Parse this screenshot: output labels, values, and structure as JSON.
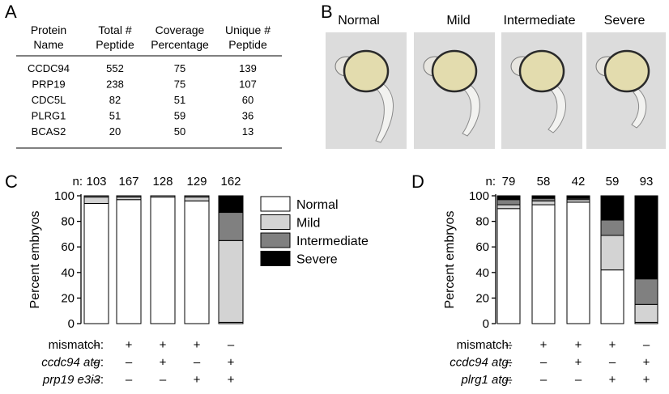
{
  "panels": {
    "A": "A",
    "B": "B",
    "C": "C",
    "D": "D"
  },
  "table": {
    "headers": [
      [
        "Protein",
        "Name"
      ],
      [
        "Total #",
        "Peptide"
      ],
      [
        "Coverage",
        "Percentage"
      ],
      [
        "Unique #",
        "Peptide"
      ]
    ],
    "rows": [
      [
        "CCDC94",
        "552",
        "75",
        "139"
      ],
      [
        "PRP19",
        "238",
        "75",
        "107"
      ],
      [
        "CDC5L",
        "82",
        "51",
        "60"
      ],
      [
        "PLRG1",
        "51",
        "59",
        "36"
      ],
      [
        "BCAS2",
        "20",
        "50",
        "13"
      ]
    ]
  },
  "phenotypes": {
    "labels": [
      "Normal",
      "Mild",
      "Intermediate",
      "Severe"
    ]
  },
  "legend": {
    "entries": [
      {
        "label": "Normal",
        "color": "#ffffff"
      },
      {
        "label": "Mild",
        "color": "#d3d3d3"
      },
      {
        "label": "Intermediate",
        "color": "#808080"
      },
      {
        "label": "Severe",
        "color": "#000000"
      }
    ]
  },
  "chart_data": [
    {
      "type": "bar",
      "stacked": true,
      "panel": "C",
      "ylabel": "Percent embryos",
      "ylim": [
        0,
        100
      ],
      "yticks": [
        "0",
        "20",
        "40",
        "60",
        "80",
        "100"
      ],
      "n_prefix": "n:",
      "n": [
        "103",
        "167",
        "128",
        "129",
        "162"
      ],
      "series": [
        {
          "name": "Normal",
          "values": [
            94,
            97,
            99,
            96,
            1
          ]
        },
        {
          "name": "Mild",
          "values": [
            5,
            2,
            1,
            3,
            64
          ]
        },
        {
          "name": "Intermediate",
          "values": [
            1,
            1,
            0,
            1,
            22
          ]
        },
        {
          "name": "Severe",
          "values": [
            0,
            0,
            0,
            0,
            13
          ]
        }
      ],
      "conditions": [
        {
          "label": "mismatch:",
          "italic": false,
          "marks": [
            "–",
            "+",
            "+",
            "+",
            "–"
          ]
        },
        {
          "label": "ccdc94 atg",
          "suffix": ":",
          "italic": true,
          "marks": [
            "–",
            "–",
            "+",
            "–",
            "+"
          ]
        },
        {
          "label": "prp19 e3i3",
          "suffix": ":",
          "italic": true,
          "marks": [
            "–",
            "–",
            "–",
            "+",
            "+"
          ]
        }
      ]
    },
    {
      "type": "bar",
      "stacked": true,
      "panel": "D",
      "ylabel": "Percent embryos",
      "ylim": [
        0,
        100
      ],
      "yticks": [
        "0",
        "20",
        "40",
        "60",
        "80",
        "100"
      ],
      "n_prefix": "n:",
      "n": [
        "79",
        "58",
        "42",
        "59",
        "93"
      ],
      "series": [
        {
          "name": "Normal",
          "values": [
            90,
            93,
            95,
            42,
            1
          ]
        },
        {
          "name": "Mild",
          "values": [
            3,
            3,
            2,
            27,
            14
          ]
        },
        {
          "name": "Intermediate",
          "values": [
            4,
            2,
            1,
            12,
            20
          ]
        },
        {
          "name": "Severe",
          "values": [
            3,
            2,
            2,
            19,
            65
          ]
        }
      ],
      "conditions": [
        {
          "label": "mismatch:",
          "italic": false,
          "marks": [
            "–",
            "+",
            "+",
            "+",
            "–"
          ]
        },
        {
          "label": "ccdc94 atg",
          "suffix": ":",
          "italic": true,
          "marks": [
            "–",
            "–",
            "+",
            "–",
            "+"
          ]
        },
        {
          "label": "plrg1 atg",
          "suffix": ":",
          "italic": true,
          "marks": [
            "–",
            "–",
            "–",
            "+",
            "+"
          ]
        }
      ]
    }
  ]
}
